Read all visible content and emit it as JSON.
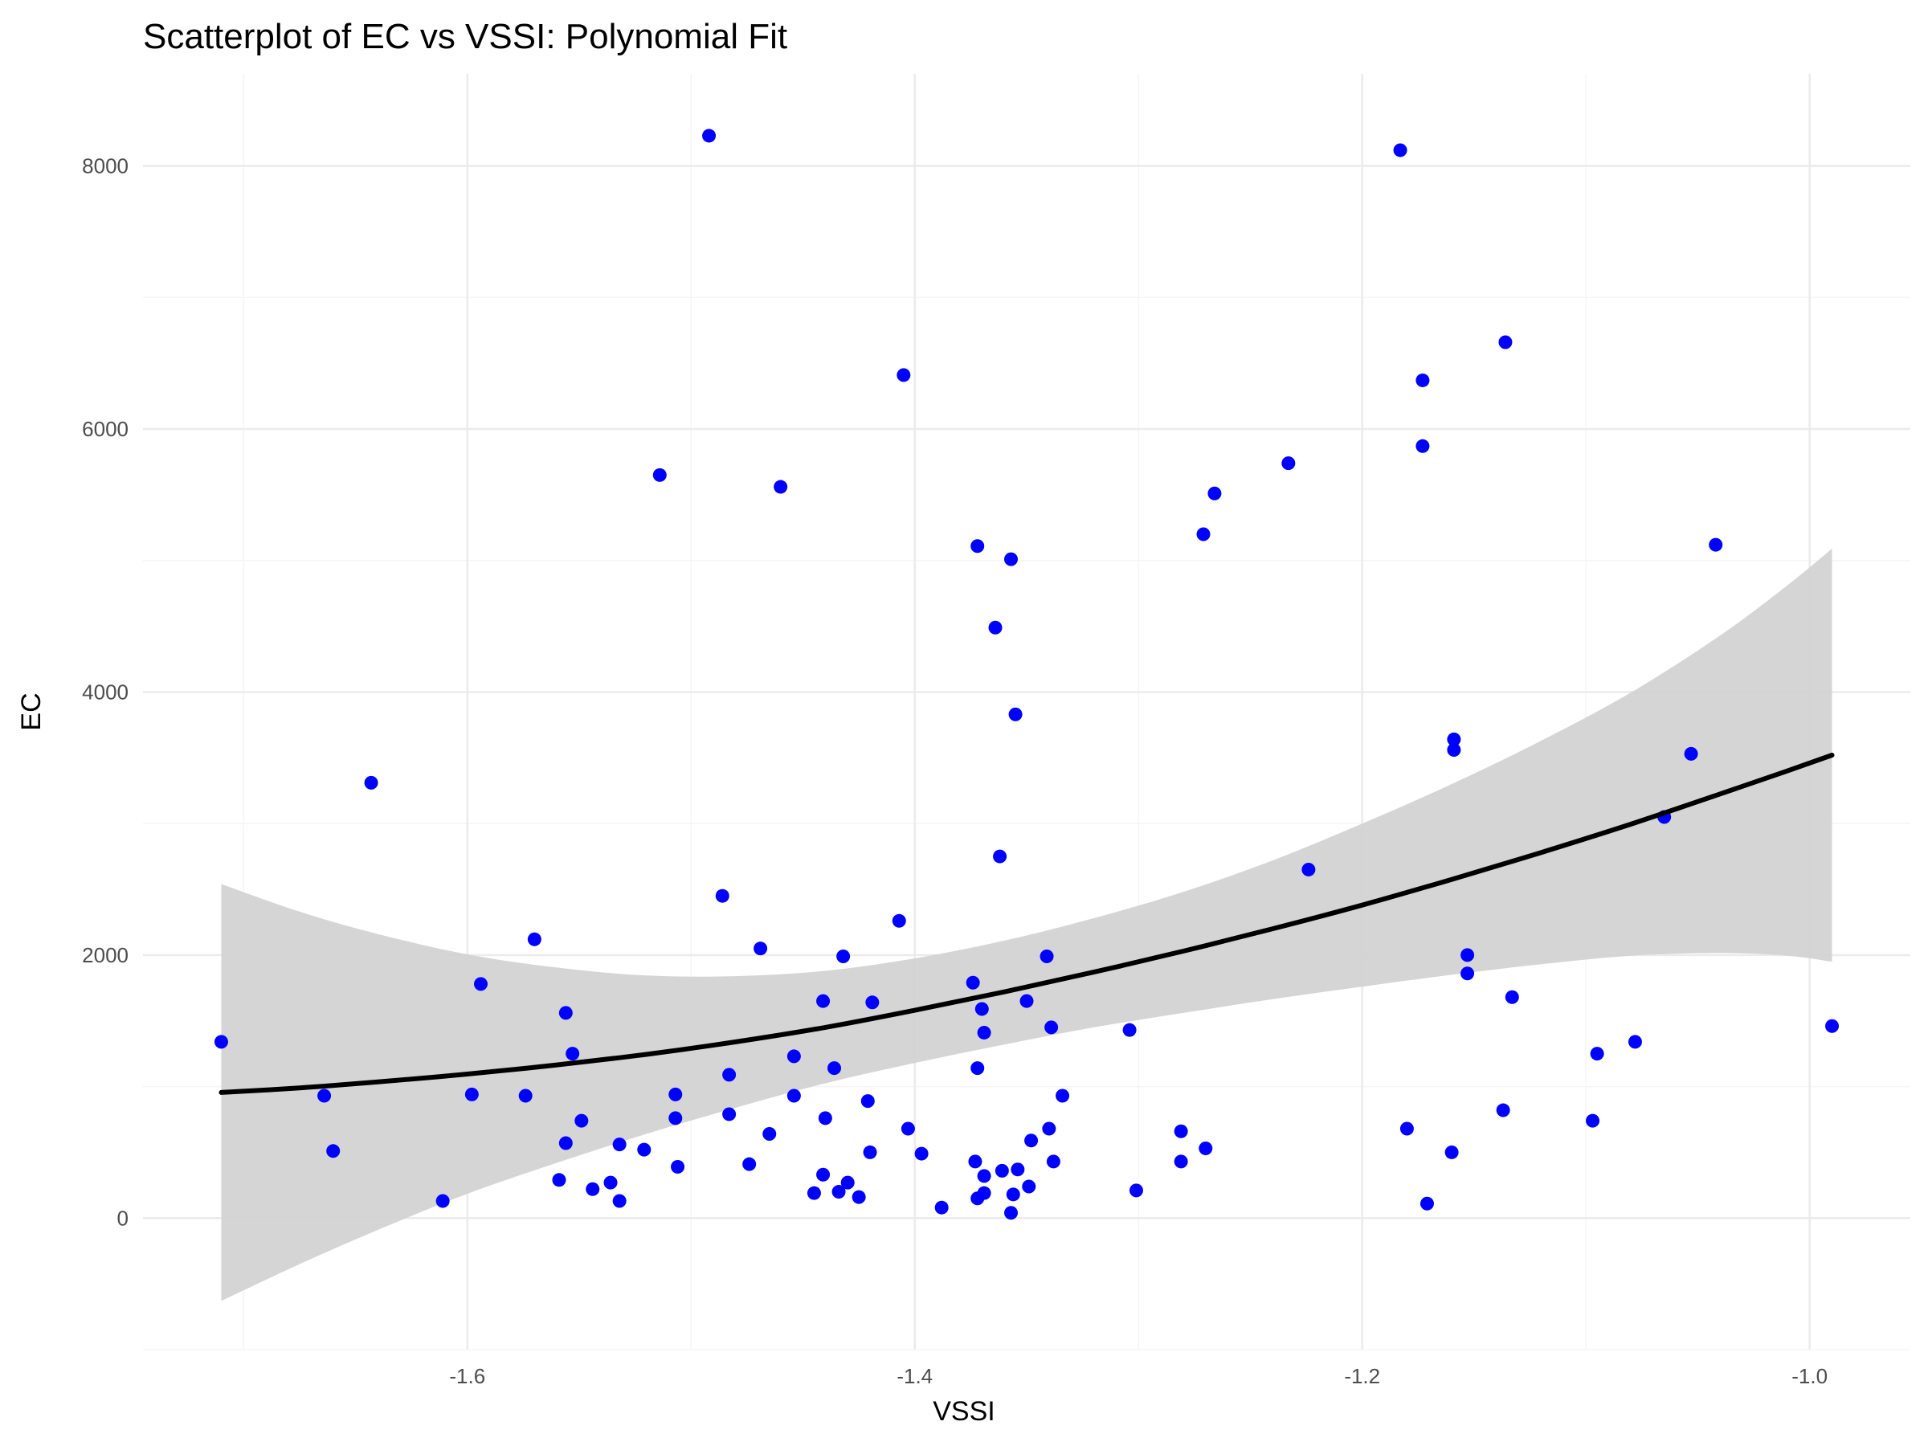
{
  "chart_data": {
    "type": "scatter",
    "title": "Scatterplot of EC vs VSSI: Polynomial Fit",
    "xlabel": "VSSI",
    "ylabel": "EC",
    "xlim": [
      -1.745,
      -0.955
    ],
    "ylim": [
      -1000,
      8700
    ],
    "x_ticks": [
      -1.6,
      -1.4,
      -1.2,
      -1.0
    ],
    "x_tick_labels": [
      "-1.6",
      "-1.4",
      "-1.2",
      "-1.0"
    ],
    "y_ticks": [
      0,
      2000,
      4000,
      6000,
      8000
    ],
    "y_tick_labels": [
      "0",
      "2000",
      "4000",
      "6000",
      "8000"
    ],
    "grid": true,
    "legend": "none",
    "colors": {
      "points": "#0000ff",
      "fit_line": "#000000",
      "ribbon": "#d3d3d3",
      "grid_major": "#ebebeb",
      "grid_minor": "#f5f5f5"
    },
    "points": [
      {
        "x": -1.71,
        "y": 1340
      },
      {
        "x": -1.664,
        "y": 930
      },
      {
        "x": -1.66,
        "y": 510
      },
      {
        "x": -1.643,
        "y": 3310
      },
      {
        "x": -1.611,
        "y": 130
      },
      {
        "x": -1.598,
        "y": 940
      },
      {
        "x": -1.594,
        "y": 1780
      },
      {
        "x": -1.574,
        "y": 930
      },
      {
        "x": -1.57,
        "y": 2120
      },
      {
        "x": -1.559,
        "y": 290
      },
      {
        "x": -1.556,
        "y": 1560
      },
      {
        "x": -1.556,
        "y": 570
      },
      {
        "x": -1.553,
        "y": 1250
      },
      {
        "x": -1.549,
        "y": 740
      },
      {
        "x": -1.544,
        "y": 220
      },
      {
        "x": -1.536,
        "y": 270
      },
      {
        "x": -1.532,
        "y": 560
      },
      {
        "x": -1.532,
        "y": 130
      },
      {
        "x": -1.521,
        "y": 520
      },
      {
        "x": -1.514,
        "y": 5650
      },
      {
        "x": -1.507,
        "y": 940
      },
      {
        "x": -1.507,
        "y": 760
      },
      {
        "x": -1.506,
        "y": 390
      },
      {
        "x": -1.492,
        "y": 8230
      },
      {
        "x": -1.486,
        "y": 2450
      },
      {
        "x": -1.483,
        "y": 1090
      },
      {
        "x": -1.483,
        "y": 790
      },
      {
        "x": -1.474,
        "y": 410
      },
      {
        "x": -1.469,
        "y": 2050
      },
      {
        "x": -1.465,
        "y": 640
      },
      {
        "x": -1.46,
        "y": 5560
      },
      {
        "x": -1.454,
        "y": 1230
      },
      {
        "x": -1.454,
        "y": 930
      },
      {
        "x": -1.445,
        "y": 190
      },
      {
        "x": -1.441,
        "y": 1650
      },
      {
        "x": -1.441,
        "y": 330
      },
      {
        "x": -1.44,
        "y": 760
      },
      {
        "x": -1.436,
        "y": 1140
      },
      {
        "x": -1.434,
        "y": 200
      },
      {
        "x": -1.432,
        "y": 1990
      },
      {
        "x": -1.43,
        "y": 270
      },
      {
        "x": -1.425,
        "y": 160
      },
      {
        "x": -1.421,
        "y": 890
      },
      {
        "x": -1.42,
        "y": 500
      },
      {
        "x": -1.419,
        "y": 1640
      },
      {
        "x": -1.407,
        "y": 2260
      },
      {
        "x": -1.405,
        "y": 6410
      },
      {
        "x": -1.403,
        "y": 680
      },
      {
        "x": -1.397,
        "y": 490
      },
      {
        "x": -1.388,
        "y": 80
      },
      {
        "x": -1.374,
        "y": 1790
      },
      {
        "x": -1.373,
        "y": 430
      },
      {
        "x": -1.372,
        "y": 5110
      },
      {
        "x": -1.372,
        "y": 1140
      },
      {
        "x": -1.372,
        "y": 150
      },
      {
        "x": -1.37,
        "y": 1590
      },
      {
        "x": -1.369,
        "y": 1410
      },
      {
        "x": -1.369,
        "y": 320
      },
      {
        "x": -1.369,
        "y": 190
      },
      {
        "x": -1.364,
        "y": 4490
      },
      {
        "x": -1.362,
        "y": 2750
      },
      {
        "x": -1.361,
        "y": 360
      },
      {
        "x": -1.357,
        "y": 5010
      },
      {
        "x": -1.357,
        "y": 40
      },
      {
        "x": -1.356,
        "y": 180
      },
      {
        "x": -1.355,
        "y": 3830
      },
      {
        "x": -1.354,
        "y": 370
      },
      {
        "x": -1.35,
        "y": 1650
      },
      {
        "x": -1.349,
        "y": 240
      },
      {
        "x": -1.348,
        "y": 590
      },
      {
        "x": -1.341,
        "y": 1990
      },
      {
        "x": -1.34,
        "y": 680
      },
      {
        "x": -1.339,
        "y": 1450
      },
      {
        "x": -1.338,
        "y": 430
      },
      {
        "x": -1.334,
        "y": 930
      },
      {
        "x": -1.304,
        "y": 1430
      },
      {
        "x": -1.301,
        "y": 210
      },
      {
        "x": -1.281,
        "y": 660
      },
      {
        "x": -1.281,
        "y": 430
      },
      {
        "x": -1.271,
        "y": 5200
      },
      {
        "x": -1.27,
        "y": 530
      },
      {
        "x": -1.266,
        "y": 5510
      },
      {
        "x": -1.233,
        "y": 5740
      },
      {
        "x": -1.224,
        "y": 2650
      },
      {
        "x": -1.183,
        "y": 8120
      },
      {
        "x": -1.18,
        "y": 680
      },
      {
        "x": -1.173,
        "y": 6370
      },
      {
        "x": -1.173,
        "y": 5870
      },
      {
        "x": -1.171,
        "y": 110
      },
      {
        "x": -1.16,
        "y": 500
      },
      {
        "x": -1.159,
        "y": 3640
      },
      {
        "x": -1.159,
        "y": 3560
      },
      {
        "x": -1.153,
        "y": 2000
      },
      {
        "x": -1.153,
        "y": 1860
      },
      {
        "x": -1.137,
        "y": 820
      },
      {
        "x": -1.136,
        "y": 6660
      },
      {
        "x": -1.133,
        "y": 1680
      },
      {
        "x": -1.097,
        "y": 740
      },
      {
        "x": -1.095,
        "y": 1250
      },
      {
        "x": -1.078,
        "y": 1340
      },
      {
        "x": -1.065,
        "y": 3050
      },
      {
        "x": -1.053,
        "y": 3530
      },
      {
        "x": -1.042,
        "y": 5120
      },
      {
        "x": -0.99,
        "y": 1460
      }
    ],
    "fit": [
      {
        "x": -1.71,
        "y": 955,
        "ymin": -630,
        "ymax": 2540
      },
      {
        "x": -1.675,
        "y": 990,
        "ymin": -350,
        "ymax": 2330
      },
      {
        "x": -1.64,
        "y": 1035,
        "ymin": -90,
        "ymax": 2160
      },
      {
        "x": -1.6,
        "y": 1095,
        "ymin": 185,
        "ymax": 2005
      },
      {
        "x": -1.56,
        "y": 1165,
        "ymin": 420,
        "ymax": 1905
      },
      {
        "x": -1.52,
        "y": 1245,
        "ymin": 640,
        "ymax": 1845
      },
      {
        "x": -1.48,
        "y": 1340,
        "ymin": 840,
        "ymax": 1840
      },
      {
        "x": -1.44,
        "y": 1450,
        "ymin": 1025,
        "ymax": 1880
      },
      {
        "x": -1.4,
        "y": 1580,
        "ymin": 1180,
        "ymax": 1975
      },
      {
        "x": -1.36,
        "y": 1720,
        "ymin": 1320,
        "ymax": 2110
      },
      {
        "x": -1.32,
        "y": 1870,
        "ymin": 1450,
        "ymax": 2280
      },
      {
        "x": -1.28,
        "y": 2030,
        "ymin": 1560,
        "ymax": 2480
      },
      {
        "x": -1.24,
        "y": 2200,
        "ymin": 1665,
        "ymax": 2720
      },
      {
        "x": -1.2,
        "y": 2380,
        "ymin": 1760,
        "ymax": 3000
      },
      {
        "x": -1.16,
        "y": 2575,
        "ymin": 1850,
        "ymax": 3300
      },
      {
        "x": -1.12,
        "y": 2780,
        "ymin": 1930,
        "ymax": 3630
      },
      {
        "x": -1.08,
        "y": 2995,
        "ymin": 1995,
        "ymax": 3995
      },
      {
        "x": -1.04,
        "y": 3225,
        "ymin": 2015,
        "ymax": 4430
      },
      {
        "x": -1.01,
        "y": 3400,
        "ymin": 1995,
        "ymax": 4810
      },
      {
        "x": -0.99,
        "y": 3520,
        "ymin": 1950,
        "ymax": 5090
      }
    ]
  }
}
